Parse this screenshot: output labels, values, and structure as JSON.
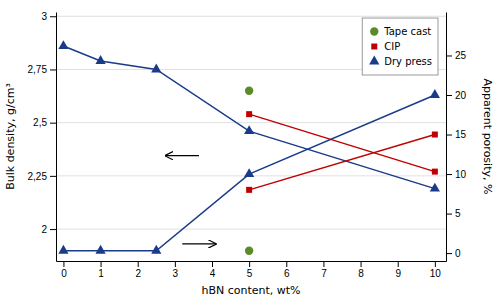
{
  "chart_data": {
    "type": "line",
    "xlabel": "hBN content, wt%",
    "ylabel": "Bulk density, g/cm³",
    "y2label": "Apparent porosity, %",
    "series": [
      {
        "name": "Dry press",
        "color": "#1a3a8a",
        "marker": "triangle",
        "line_style": "solid",
        "x": [
          0,
          1,
          2.5,
          5,
          10
        ],
        "values": [
          2.86,
          2.79,
          2.75,
          2.46,
          2.19
        ]
      },
      {
        "name": "CIP",
        "color": "#c00000",
        "marker": "square",
        "line_style": "solid",
        "x": [
          5,
          10
        ],
        "values": [
          2.54,
          2.27
        ]
      },
      {
        "name": "Tape cast",
        "color": "#5a8a2a",
        "marker": "circle",
        "line_style": "none",
        "x": [
          5
        ],
        "values": [
          2.65
        ]
      },
      {
        "name": "Dry press",
        "color": "#1a3a8a",
        "marker": "triangle",
        "line_style": "solid",
        "axis": "y2",
        "x": [
          0,
          1,
          2.5,
          5,
          10
        ],
        "values": [
          0.3,
          0.3,
          0.3,
          10.0,
          20.0
        ]
      },
      {
        "name": "CIP",
        "color": "#c00000",
        "marker": "square",
        "line_style": "solid",
        "axis": "y2",
        "x": [
          5,
          10
        ],
        "values": [
          8.0,
          15.0
        ]
      },
      {
        "name": "Tape cast",
        "color": "#5a8a2a",
        "marker": "circle",
        "line_style": "none",
        "axis": "y2",
        "x": [
          5
        ],
        "values": [
          0.3
        ]
      }
    ],
    "xlim": [
      -0.2,
      10.3
    ],
    "xticks": [
      0,
      1,
      2,
      3,
      4,
      5,
      6,
      7,
      8,
      9,
      10
    ],
    "ylim": [
      1.85,
      3.02
    ],
    "yticks": [
      2,
      {
        "value": 2.25,
        "label": "2,25"
      },
      {
        "value": 2.5,
        "label": "2,5"
      },
      {
        "value": 2.75,
        "label": "2,75"
      },
      3
    ],
    "y2lim": [
      -1.0,
      30.5
    ],
    "y2ticks": [
      0,
      5,
      10,
      15,
      20,
      25
    ],
    "grid": true,
    "legend": "upper right",
    "annotations": [
      {
        "type": "arrow",
        "x": [
          3.65,
          2.75
        ],
        "y": 2.345
      },
      {
        "type": "arrow",
        "x": [
          3.2,
          4.1
        ],
        "y": 1.93
      }
    ]
  }
}
